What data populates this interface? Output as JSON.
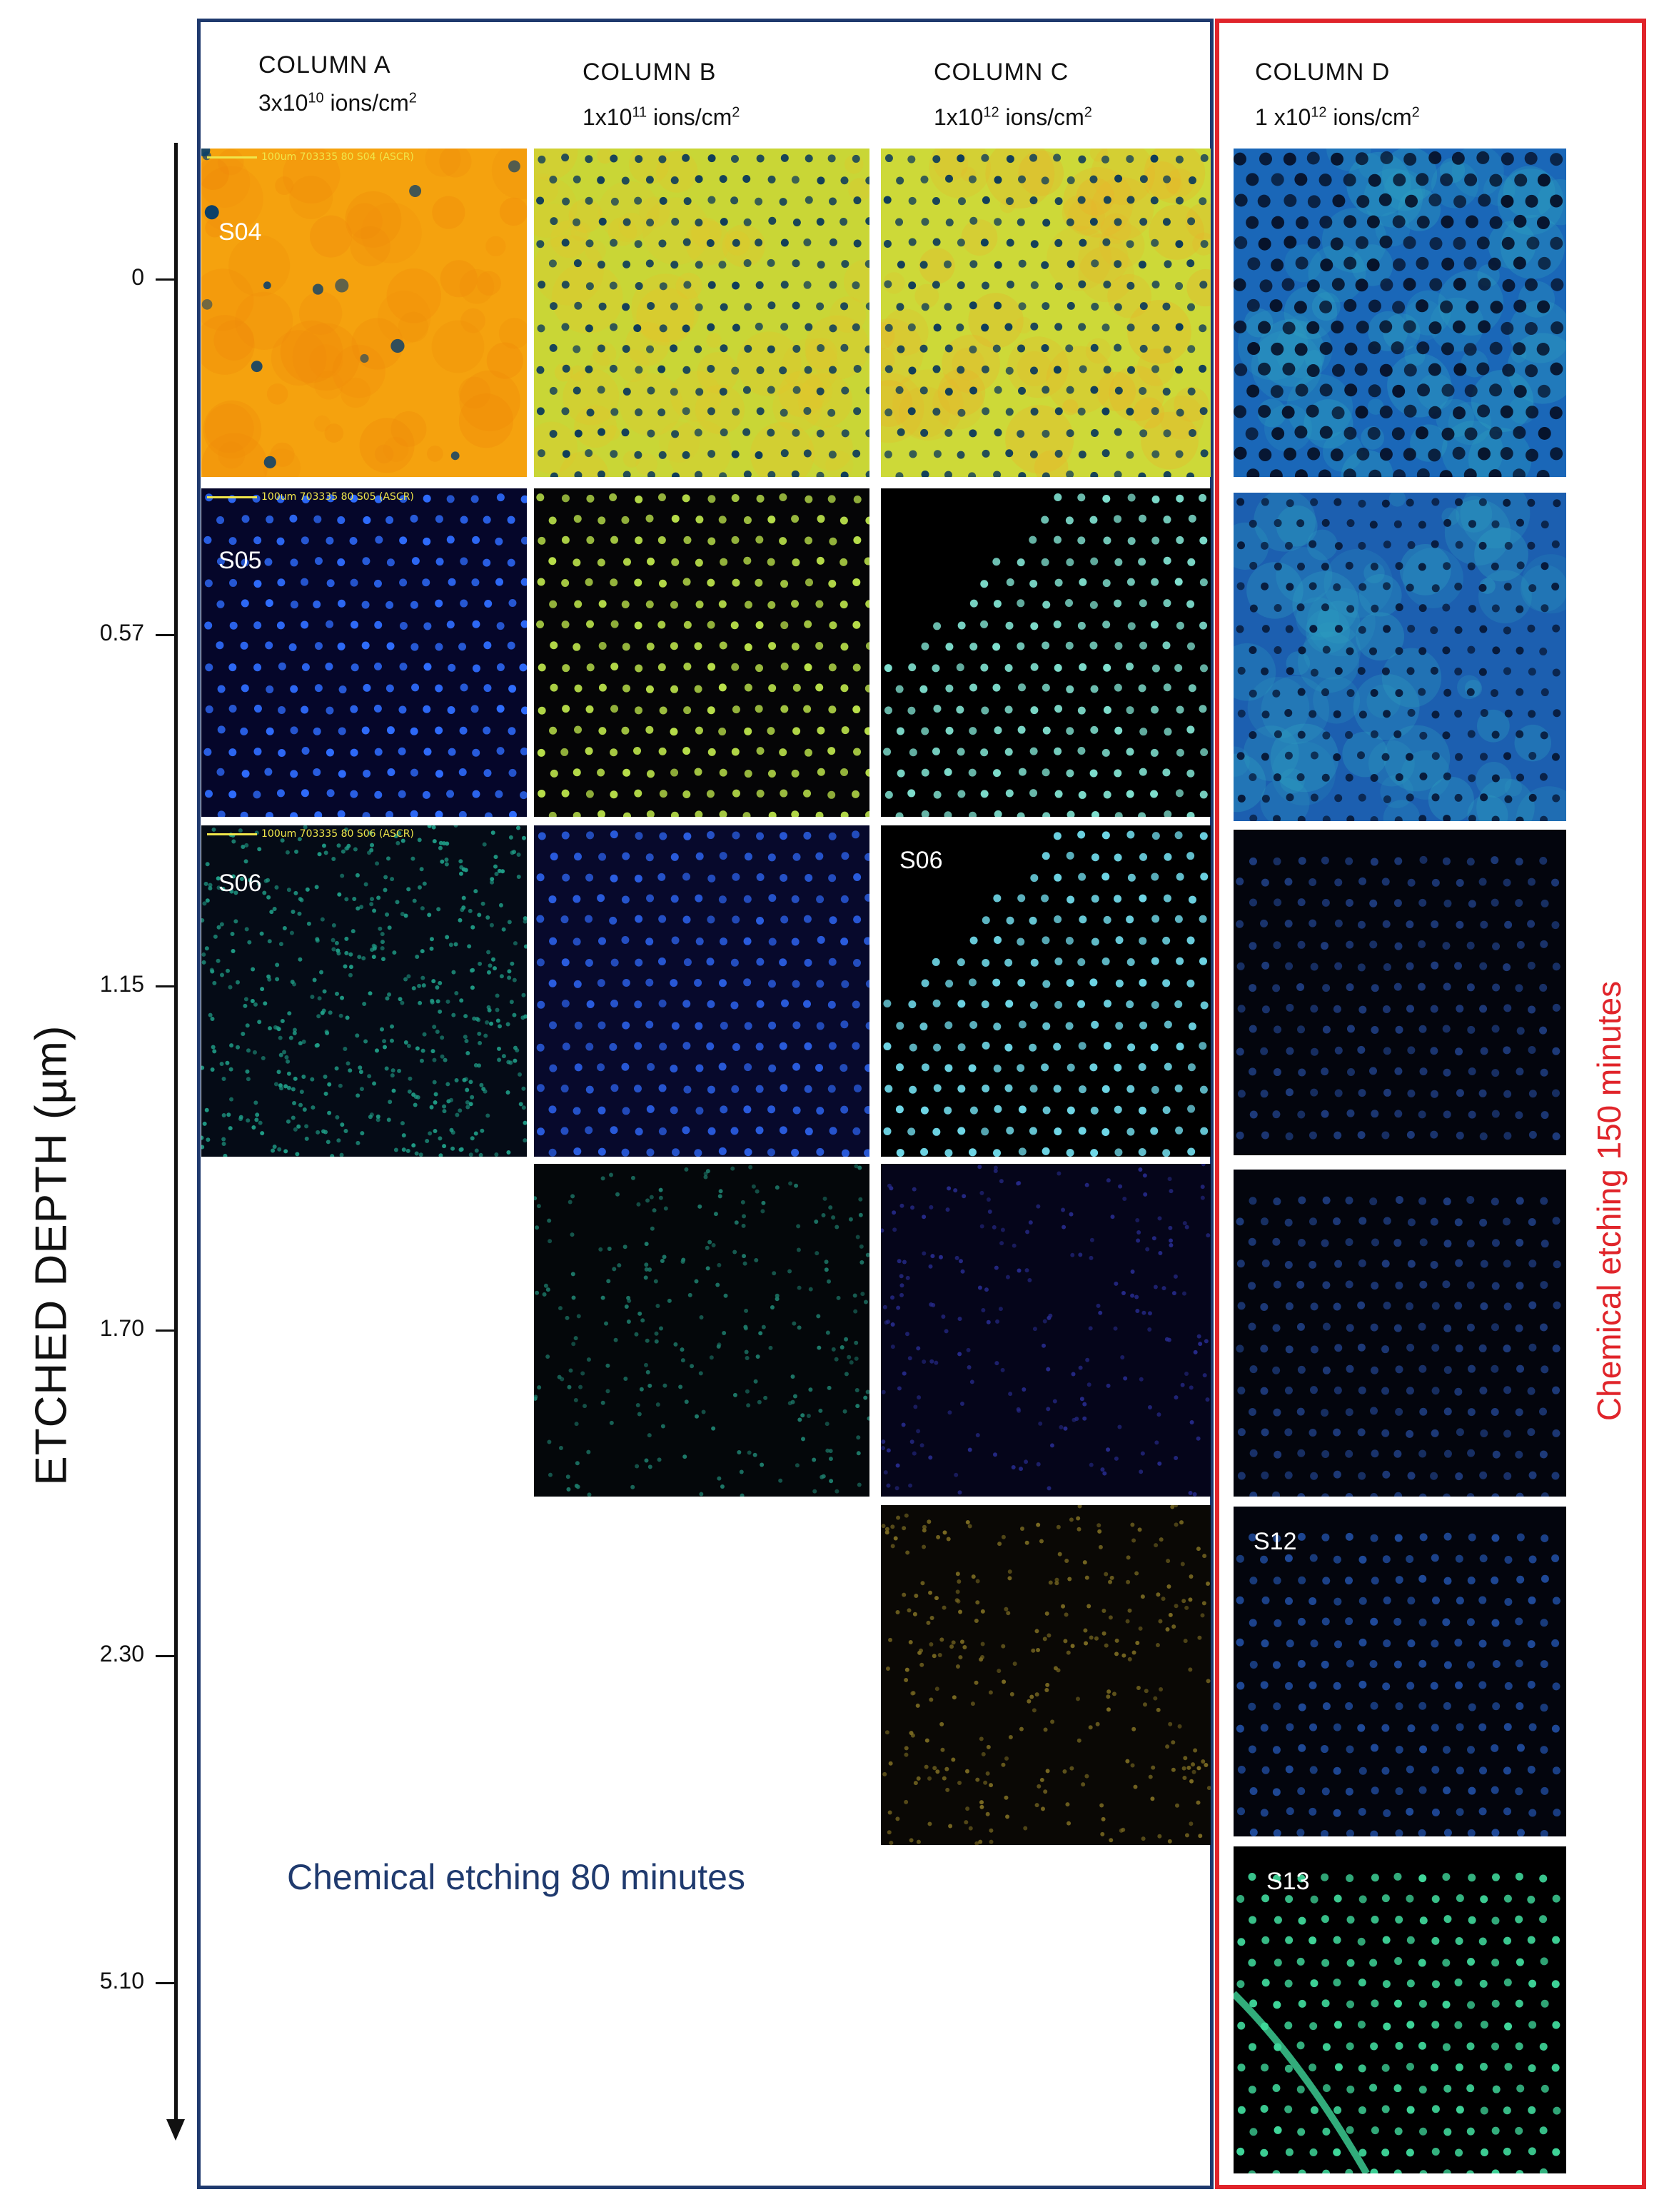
{
  "columns": [
    {
      "title": "COLUMN A",
      "dose_prefix": "3x10",
      "dose_exp": "10",
      "dose_unit": " ions/cm",
      "dose_unit_exp": "2"
    },
    {
      "title": "COLUMN B",
      "dose_prefix": "1x10",
      "dose_exp": "11",
      "dose_unit": " ions/cm",
      "dose_unit_exp": "2"
    },
    {
      "title": "COLUMN C",
      "dose_prefix": "1x10",
      "dose_exp": "12",
      "dose_unit": " ions/cm",
      "dose_unit_exp": "2"
    },
    {
      "title": "COLUMN D",
      "dose_prefix": "1 x10",
      "dose_exp": "12",
      "dose_unit": " ions/cm",
      "dose_unit_exp": "2"
    }
  ],
  "axis": {
    "title": "ETCHED DEPTH (µm)",
    "ticks": [
      "0",
      "0.57",
      "1.15",
      "1.70",
      "2.30",
      "5.10"
    ]
  },
  "scalebars": {
    "s04": "100um   703335 80    S04 (ASCR)",
    "s05": "100um   703335 80    S05 (ASCR)",
    "s06": "100um   703335 80    S06 (ASCR)"
  },
  "sample_labels": {
    "a0": "S04",
    "a1": "S05",
    "a2": "S06",
    "c2": "S06",
    "d4": "S12",
    "d5": "S13"
  },
  "annotations": {
    "etch80": "Chemical etching 80 minutes",
    "etch150": "Chemical etching 150 minutes"
  },
  "colors": {
    "blue_frame": "#1f3a6e",
    "red_frame": "#e0242a"
  }
}
